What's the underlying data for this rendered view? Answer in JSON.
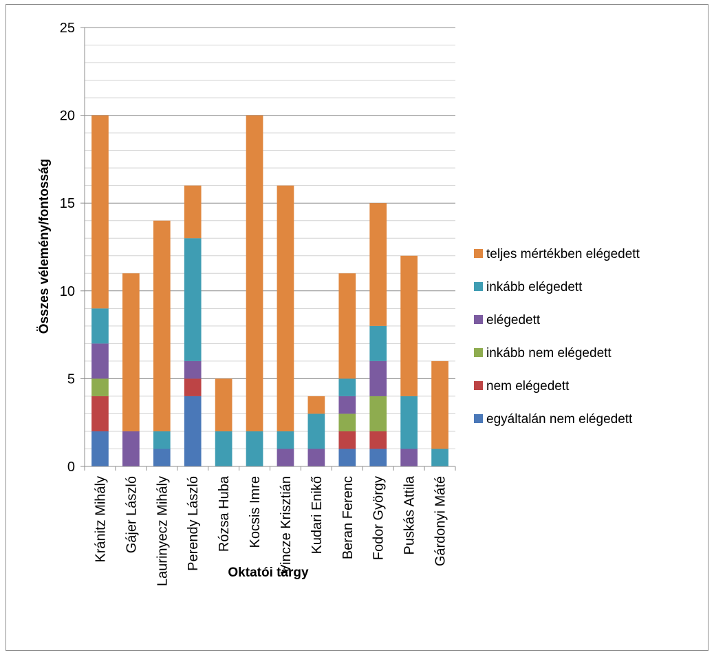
{
  "chart_data": {
    "type": "bar",
    "stacked": true,
    "title": "",
    "xlabel": "Oktatói tárgy",
    "ylabel": "Összes vélemény/fontosság",
    "ylim": [
      0,
      25
    ],
    "yticks": [
      0,
      5,
      10,
      15,
      20,
      25
    ],
    "minor_gridlines_every": 1,
    "grid": true,
    "legend_position": "right",
    "categories": [
      "Kránitz Mihály",
      "Gájer László",
      "Laurinyecz Mihály",
      "Perendy László",
      "Rózsa Huba",
      "Kocsis Imre",
      "Vincze Krisztián",
      "Kudari Enikő",
      "Beran Ferenc",
      "Fodor György",
      "Puskás Attila",
      "Gárdonyi Máté"
    ],
    "series": [
      {
        "name": "egyáltalán nem elégedett",
        "color": "#4a78b8",
        "values": [
          2,
          0,
          1,
          4,
          0,
          0,
          0,
          0,
          1,
          1,
          0,
          0
        ]
      },
      {
        "name": "nem elégedett",
        "color": "#bd4445",
        "values": [
          2,
          0,
          0,
          1,
          0,
          0,
          0,
          0,
          1,
          1,
          0,
          0
        ]
      },
      {
        "name": "inkább nem elégedett",
        "color": "#8eac4f",
        "values": [
          1,
          0,
          0,
          0,
          0,
          0,
          0,
          0,
          1,
          2,
          0,
          0
        ]
      },
      {
        "name": "elégedett",
        "color": "#7b5ba0",
        "values": [
          2,
          2,
          0,
          1,
          0,
          0,
          1,
          1,
          1,
          2,
          1,
          0
        ]
      },
      {
        "name": "inkább elégedett",
        "color": "#3f9db3",
        "values": [
          2,
          0,
          1,
          7,
          2,
          2,
          1,
          2,
          1,
          2,
          3,
          1
        ]
      },
      {
        "name": "teljes mértékben elégedett",
        "color": "#e0873f",
        "values": [
          11,
          9,
          12,
          3,
          3,
          18,
          14,
          1,
          6,
          7,
          8,
          5
        ]
      }
    ]
  }
}
